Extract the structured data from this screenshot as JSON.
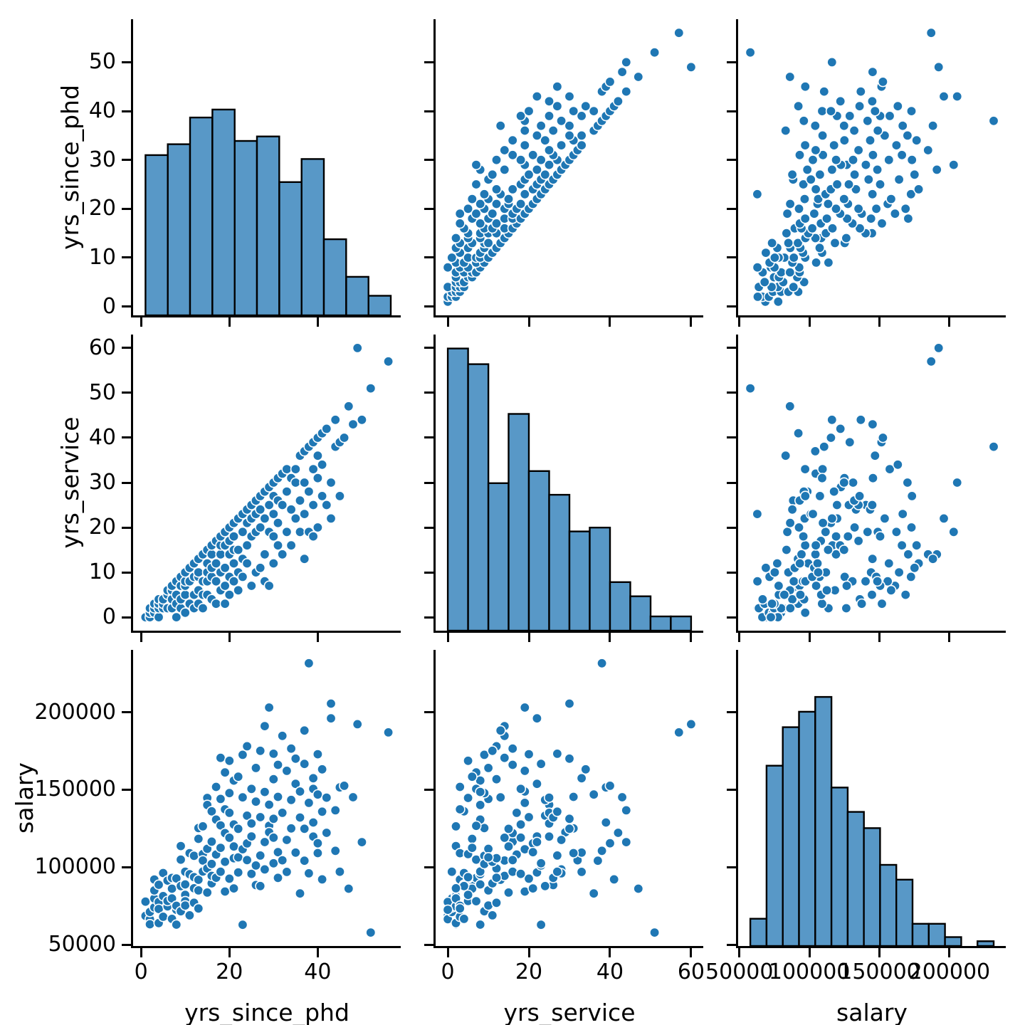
{
  "figure": {
    "background": "#ffffff",
    "description": "3x3 pairplot matrix: scatter plots off-diagonal, histograms on diagonal"
  },
  "styles": {
    "point_fill": "#1f77b4",
    "point_edge": "#ffffff",
    "hist_fill": "#5898c7",
    "hist_edge": "#000000",
    "spine_color": "#000000"
  },
  "chart_data": {
    "type": "pairplot",
    "grid": "3x3",
    "legend": "none",
    "title": "",
    "variables": [
      {
        "name": "yrs_since_phd",
        "label": "yrs_since_phd",
        "lim": [
          -1.8,
          58.8
        ],
        "xticks": [
          0,
          20,
          40
        ],
        "yticks": [
          0,
          10,
          20,
          30,
          40,
          50
        ]
      },
      {
        "name": "yrs_service",
        "label": "yrs_service",
        "lim": [
          -3,
          63
        ],
        "xticks": [
          0,
          20,
          40,
          60
        ],
        "yticks": [
          0,
          10,
          20,
          30,
          40,
          50,
          60
        ]
      },
      {
        "name": "salary",
        "label": "salary",
        "lim": [
          49100,
          240200
        ],
        "xticks": [
          50000,
          100000,
          150000,
          200000
        ],
        "yticks": [
          50000,
          100000,
          150000,
          200000
        ]
      }
    ],
    "histograms": [
      {
        "variable": "yrs_since_phd",
        "bin_start": 1,
        "bin_width": 5.05,
        "heights_frac": [
          0.541,
          0.578,
          0.668,
          0.695,
          0.589,
          0.604,
          0.45,
          0.528,
          0.257,
          0.13,
          0.066
        ],
        "est_counts": [
          43,
          45,
          53,
          55,
          47,
          48,
          36,
          42,
          20,
          10,
          5
        ]
      },
      {
        "variable": "yrs_service",
        "bin_start": 0,
        "bin_width": 5,
        "heights_frac": [
          0.953,
          0.9,
          0.498,
          0.732,
          0.539,
          0.459,
          0.335,
          0.348,
          0.164,
          0.116,
          0.048,
          0.048
        ],
        "est_counts": [
          78,
          74,
          41,
          60,
          44,
          38,
          27,
          29,
          13,
          10,
          4,
          4
        ]
      },
      {
        "variable": "salary",
        "bin_start": 57800,
        "bin_width": 11583,
        "heights_frac": [
          0.092,
          0.609,
          0.739,
          0.791,
          0.841,
          0.535,
          0.453,
          0.398,
          0.274,
          0.224,
          0.075,
          0.075,
          0.03,
          0,
          0.016
        ],
        "est_counts": [
          7,
          47,
          57,
          61,
          65,
          41,
          35,
          31,
          21,
          17,
          6,
          6,
          2,
          0,
          1
        ]
      }
    ],
    "records_columns": [
      "yrs_since_phd",
      "yrs_service",
      "salary"
    ],
    "records": [
      [
        1,
        0,
        68510
      ],
      [
        1,
        0,
        77700
      ],
      [
        2,
        0,
        66400
      ],
      [
        2,
        1,
        71065
      ],
      [
        2,
        2,
        63100
      ],
      [
        3,
        1,
        74000
      ],
      [
        3,
        1,
        79750
      ],
      [
        3,
        2,
        85000
      ],
      [
        3,
        3,
        92000
      ],
      [
        4,
        0,
        77500
      ],
      [
        4,
        2,
        63900
      ],
      [
        4,
        3,
        73000
      ],
      [
        4,
        4,
        88600
      ],
      [
        5,
        2,
        81285
      ],
      [
        5,
        3,
        68000
      ],
      [
        5,
        4,
        96200
      ],
      [
        6,
        2,
        74692
      ],
      [
        6,
        5,
        78162
      ],
      [
        6,
        6,
        91300
      ],
      [
        7,
        2,
        79800
      ],
      [
        7,
        4,
        66605
      ],
      [
        7,
        6,
        86100
      ],
      [
        7,
        7,
        93000
      ],
      [
        8,
        0,
        72500
      ],
      [
        8,
        3,
        75044
      ],
      [
        8,
        5,
        92700
      ],
      [
        8,
        8,
        62884
      ],
      [
        9,
        2,
        113600
      ],
      [
        9,
        4,
        87800
      ],
      [
        9,
        7,
        104800
      ],
      [
        9,
        9,
        71500
      ],
      [
        10,
        1,
        97000
      ],
      [
        10,
        5,
        82100
      ],
      [
        10,
        7,
        78000
      ],
      [
        10,
        8,
        88825
      ],
      [
        10,
        10,
        75243
      ],
      [
        11,
        3,
        109000
      ],
      [
        11,
        8,
        95400
      ],
      [
        11,
        11,
        68878
      ],
      [
        12,
        2,
        86373
      ],
      [
        12,
        5,
        93519
      ],
      [
        12,
        9,
        107300
      ],
      [
        12,
        12,
        77000
      ],
      [
        13,
        3,
        73300
      ],
      [
        13,
        6,
        118223
      ],
      [
        13,
        9,
        125196
      ],
      [
        13,
        10,
        85000
      ],
      [
        13,
        13,
        91800
      ],
      [
        14,
        2,
        126300
      ],
      [
        14,
        5,
        108413
      ],
      [
        14,
        8,
        97150
      ],
      [
        14,
        14,
        104279
      ],
      [
        15,
        5,
        144651
      ],
      [
        15,
        8,
        140096
      ],
      [
        15,
        10,
        111790
      ],
      [
        15,
        12,
        99140
      ],
      [
        15,
        15,
        83600
      ],
      [
        16,
        4,
        136000
      ],
      [
        16,
        9,
        102000
      ],
      [
        16,
        11,
        89516
      ],
      [
        16,
        14,
        94350
      ],
      [
        16,
        16,
        116450
      ],
      [
        17,
        3,
        151768
      ],
      [
        17,
        8,
        130664
      ],
      [
        17,
        12,
        93164
      ],
      [
        17,
        17,
        108150
      ],
      [
        18,
        6,
        112429
      ],
      [
        18,
        10,
        144000
      ],
      [
        18,
        14,
        170500
      ],
      [
        18,
        16,
        97000
      ],
      [
        18,
        18,
        126933
      ],
      [
        19,
        3,
        137317
      ],
      [
        19,
        7,
        161101
      ],
      [
        19,
        11,
        103450
      ],
      [
        19,
        16,
        121946
      ],
      [
        19,
        19,
        84240
      ],
      [
        20,
        5,
        168635
      ],
      [
        20,
        9,
        147765
      ],
      [
        20,
        14,
        118971
      ],
      [
        20,
        17,
        135027
      ],
      [
        20,
        20,
        92550
      ],
      [
        21,
        8,
        155865
      ],
      [
        21,
        12,
        105760
      ],
      [
        21,
        15,
        113341
      ],
      [
        21,
        18,
        127512
      ],
      [
        21,
        21,
        86250
      ],
      [
        22,
        6,
        158345
      ],
      [
        22,
        10,
        106300
      ],
      [
        22,
        15,
        124714
      ],
      [
        22,
        22,
        96545
      ],
      [
        23,
        9,
        172505
      ],
      [
        23,
        13,
        145028
      ],
      [
        23,
        19,
        111512
      ],
      [
        23,
        23,
        62790
      ],
      [
        24,
        12,
        178000
      ],
      [
        24,
        16,
        104542
      ],
      [
        24,
        21,
        115313
      ],
      [
        24,
        24,
        133217
      ],
      [
        25,
        7,
        150480
      ],
      [
        25,
        18,
        95642
      ],
      [
        25,
        22,
        119800
      ],
      [
        25,
        25,
        128148
      ],
      [
        26,
        10,
        164000
      ],
      [
        26,
        19,
        142253
      ],
      [
        26,
        23,
        101036
      ],
      [
        26,
        26,
        88400
      ],
      [
        27,
        11,
        175044
      ],
      [
        27,
        20,
        132261
      ],
      [
        27,
        24,
        87800
      ],
      [
        27,
        27,
        107500
      ],
      [
        28,
        8,
        148500
      ],
      [
        28,
        14,
        191000
      ],
      [
        28,
        22,
        116147
      ],
      [
        28,
        28,
        98510
      ],
      [
        29,
        7,
        126621
      ],
      [
        29,
        19,
        203000
      ],
      [
        29,
        25,
        140300
      ],
      [
        29,
        29,
        122500
      ],
      [
        30,
        12,
        156737
      ],
      [
        30,
        18,
        119015
      ],
      [
        30,
        23,
        102468
      ],
      [
        30,
        27,
        173200
      ],
      [
        30,
        30,
        131200
      ],
      [
        31,
        16,
        166024
      ],
      [
        31,
        21,
        109650
      ],
      [
        31,
        26,
        93075
      ],
      [
        31,
        31,
        145350
      ],
      [
        32,
        14,
        184714
      ],
      [
        32,
        25,
        135060
      ],
      [
        32,
        32,
        104428
      ],
      [
        33,
        19,
        162150
      ],
      [
        33,
        28,
        117555
      ],
      [
        33,
        33,
        96938
      ],
      [
        34,
        16,
        176500
      ],
      [
        34,
        24,
        143373
      ],
      [
        34,
        31,
        125000
      ],
      [
        35,
        22,
        153750
      ],
      [
        35,
        30,
        170000
      ],
      [
        35,
        33,
        109357
      ],
      [
        36,
        19,
        148800
      ],
      [
        36,
        26,
        132000
      ],
      [
        36,
        36,
        83001
      ],
      [
        37,
        13,
        188158
      ],
      [
        37,
        23,
        166605
      ],
      [
        37,
        30,
        124750
      ],
      [
        37,
        37,
        104121
      ],
      [
        38,
        19,
        141500
      ],
      [
        38,
        28,
        96000
      ],
      [
        38,
        38,
        231545
      ],
      [
        39,
        18,
        150500
      ],
      [
        39,
        25,
        119700
      ],
      [
        39,
        33,
        157379
      ],
      [
        39,
        39,
        128800
      ],
      [
        40,
        20,
        172850
      ],
      [
        40,
        31,
        109066
      ],
      [
        40,
        36,
        146856
      ],
      [
        40,
        40,
        115400
      ],
      [
        41,
        27,
        135800
      ],
      [
        41,
        34,
        163100
      ],
      [
        41,
        41,
        92100
      ],
      [
        42,
        25,
        144832
      ],
      [
        42,
        42,
        122143
      ],
      [
        43,
        22,
        196000
      ],
      [
        43,
        30,
        205500
      ],
      [
        44,
        38,
        110515
      ],
      [
        44,
        44,
        136660
      ],
      [
        45,
        27,
        97032
      ],
      [
        45,
        39,
        151445
      ],
      [
        46,
        40,
        152500
      ],
      [
        47,
        47,
        86100
      ],
      [
        48,
        43,
        145098
      ],
      [
        49,
        60,
        192253
      ],
      [
        50,
        44,
        116100
      ],
      [
        52,
        51,
        57800
      ],
      [
        56,
        57,
        186960
      ]
    ]
  }
}
